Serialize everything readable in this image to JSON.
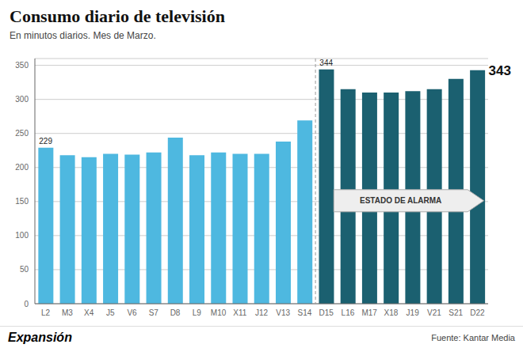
{
  "chart_data": {
    "type": "bar",
    "title": "Consumo diario de televisión",
    "subtitle": "En minutos diarios. Mes de Marzo.",
    "categories": [
      "L2",
      "M3",
      "X4",
      "J5",
      "V6",
      "S7",
      "D8",
      "L9",
      "M10",
      "X11",
      "J12",
      "V13",
      "S14",
      "D15",
      "L16",
      "M17",
      "X18",
      "J19",
      "V21",
      "S21",
      "D22"
    ],
    "values": [
      229,
      218,
      215,
      220,
      219,
      222,
      244,
      218,
      222,
      220,
      220,
      238,
      269,
      344,
      315,
      310,
      310,
      312,
      315,
      330,
      343
    ],
    "colors": [
      "#4eb8e0",
      "#4eb8e0",
      "#4eb8e0",
      "#4eb8e0",
      "#4eb8e0",
      "#4eb8e0",
      "#4eb8e0",
      "#4eb8e0",
      "#4eb8e0",
      "#4eb8e0",
      "#4eb8e0",
      "#4eb8e0",
      "#4eb8e0",
      "#1b6070",
      "#1b6070",
      "#1b6070",
      "#1b6070",
      "#1b6070",
      "#1b6070",
      "#1b6070",
      "#1b6070"
    ],
    "ylim": [
      0,
      360
    ],
    "yticks": [
      0,
      50,
      100,
      150,
      200,
      250,
      300,
      350
    ],
    "grid": true,
    "annotations": [
      {
        "text": "229",
        "x": "L2",
        "y": 229
      },
      {
        "text": "344",
        "x": "D15",
        "y": 344
      },
      {
        "text": "343",
        "x": "D22",
        "y": 343
      },
      {
        "text": "ESTADO DE ALARMA",
        "x": "D15"
      }
    ],
    "source": "Fuente: Kantar Media",
    "brand": "Expansión"
  }
}
